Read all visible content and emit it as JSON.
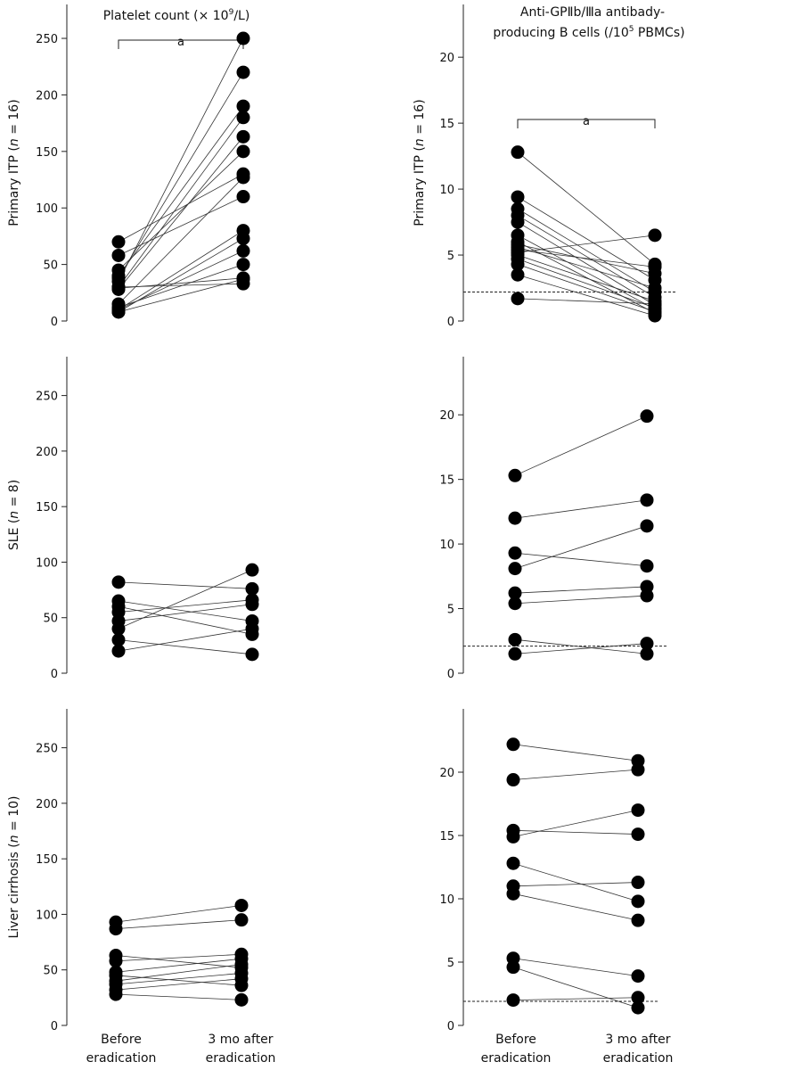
{
  "headers": {
    "left": "Platelet count (× 10",
    "left_sup": "9",
    "left_tail": "/L)",
    "right_line1": "Anti-GPⅡb/Ⅲa antibady-",
    "right_line2a": "producing B cells (/10",
    "right_line2_sup": "5",
    "right_line2b": " PBMCs)"
  },
  "categories": [
    "Before",
    "eradication",
    "3 mo after",
    "eradication"
  ],
  "chart_data": [
    {
      "type": "scatter",
      "panel": "platelet-primary-itp",
      "ylabel_pre": "Primary ITP (",
      "ylabel_n": "n",
      "ylabel_post": " = 16)",
      "x": [
        "Before eradication",
        "3 mo after eradication"
      ],
      "ylim": [
        0,
        280
      ],
      "yticks": [
        0,
        50,
        100,
        150,
        200,
        250
      ],
      "significance": "a",
      "pairs": [
        [
          70,
          130
        ],
        [
          58,
          110
        ],
        [
          45,
          150
        ],
        [
          40,
          190
        ],
        [
          38,
          220
        ],
        [
          35,
          250
        ],
        [
          30,
          180
        ],
        [
          28,
          163
        ],
        [
          15,
          127
        ],
        [
          10,
          80
        ],
        [
          8,
          73
        ],
        [
          10,
          62
        ],
        [
          12,
          50
        ],
        [
          29,
          38
        ],
        [
          30,
          33
        ],
        [
          8,
          37
        ]
      ]
    },
    {
      "type": "scatter",
      "panel": "bcells-primary-itp",
      "ylabel_pre": "Primary ITP (",
      "ylabel_n": "n",
      "ylabel_post": " = 16)",
      "x": [
        "Before eradication",
        "3 mo after eradication"
      ],
      "ylim": [
        0,
        24
      ],
      "yticks": [
        0,
        5,
        10,
        15,
        20
      ],
      "threshold": 2.2,
      "significance": "a",
      "pairs": [
        [
          12.8,
          4.3
        ],
        [
          9.4,
          3.1
        ],
        [
          8.5,
          2.2
        ],
        [
          8.0,
          1.8
        ],
        [
          7.5,
          1.2
        ],
        [
          6.5,
          0.9
        ],
        [
          6.0,
          0.6
        ],
        [
          5.8,
          3.6
        ],
        [
          5.6,
          2.5
        ],
        [
          5.4,
          4.1
        ],
        [
          5.2,
          6.5
        ],
        [
          5.0,
          1.5
        ],
        [
          4.7,
          1.0
        ],
        [
          4.3,
          0.7
        ],
        [
          3.5,
          0.4
        ],
        [
          1.7,
          1.3
        ]
      ]
    },
    {
      "type": "scatter",
      "panel": "platelet-sle",
      "ylabel_pre": "SLE (",
      "ylabel_n": "n",
      "ylabel_post": " = 8)",
      "x": [
        "Before eradication",
        "3 mo after eradication"
      ],
      "ylim": [
        0,
        285
      ],
      "yticks": [
        0,
        50,
        100,
        150,
        200,
        250
      ],
      "pairs": [
        [
          82,
          76
        ],
        [
          65,
          47
        ],
        [
          60,
          35
        ],
        [
          55,
          66
        ],
        [
          47,
          62
        ],
        [
          40,
          93
        ],
        [
          30,
          17
        ],
        [
          20,
          40
        ]
      ]
    },
    {
      "type": "scatter",
      "panel": "bcells-sle",
      "ylabel_pre": "",
      "ylabel_n": "",
      "ylabel_post": "",
      "x": [
        "Before eradication",
        "3 mo after eradication"
      ],
      "ylim": [
        0,
        24.5
      ],
      "yticks": [
        0,
        5,
        10,
        15,
        20
      ],
      "threshold": 2.1,
      "pairs": [
        [
          15.3,
          19.9
        ],
        [
          12.0,
          13.4
        ],
        [
          9.3,
          8.3
        ],
        [
          8.1,
          11.4
        ],
        [
          6.2,
          6.7
        ],
        [
          5.4,
          6.0
        ],
        [
          2.6,
          1.5
        ],
        [
          1.5,
          2.3
        ]
      ]
    },
    {
      "type": "scatter",
      "panel": "platelet-liver-cirrhosis",
      "ylabel_pre": "Liver cirrhosis (",
      "ylabel_n": "n",
      "ylabel_post": " = 10)",
      "x": [
        "Before eradication",
        "3 mo after eradication"
      ],
      "ylim": [
        0,
        285
      ],
      "yticks": [
        0,
        50,
        100,
        150,
        200,
        250
      ],
      "pairs": [
        [
          93,
          108
        ],
        [
          87,
          95
        ],
        [
          63,
          52
        ],
        [
          58,
          64
        ],
        [
          48,
          60
        ],
        [
          45,
          36
        ],
        [
          40,
          55
        ],
        [
          37,
          47
        ],
        [
          32,
          42
        ],
        [
          28,
          23
        ]
      ]
    },
    {
      "type": "scatter",
      "panel": "bcells-liver-cirrhosis",
      "ylabel_pre": "",
      "ylabel_n": "",
      "ylabel_post": "",
      "x": [
        "Before eradication",
        "3 mo after eradication"
      ],
      "ylim": [
        0,
        25
      ],
      "yticks": [
        0,
        5,
        10,
        15,
        20
      ],
      "threshold": 1.9,
      "pairs": [
        [
          22.2,
          20.9
        ],
        [
          19.4,
          20.2
        ],
        [
          15.4,
          15.1
        ],
        [
          14.9,
          17.0
        ],
        [
          12.8,
          9.8
        ],
        [
          11.0,
          11.3
        ],
        [
          10.4,
          8.3
        ],
        [
          5.3,
          3.9
        ],
        [
          4.6,
          1.4
        ],
        [
          2.0,
          2.2
        ]
      ]
    }
  ]
}
